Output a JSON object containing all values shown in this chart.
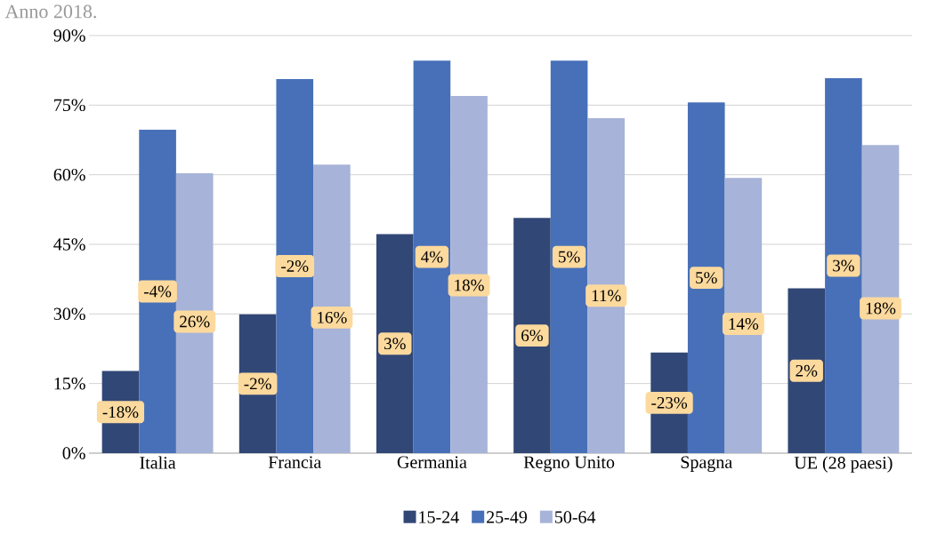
{
  "chart_data": {
    "type": "bar",
    "title": "Anno 2018.",
    "categories": [
      "Italia",
      "Francia",
      "Germania",
      "Regno Unito",
      "Spagna",
      "UE (28 paesi)"
    ],
    "series": [
      {
        "name": "15-24",
        "color": "#314776",
        "values": [
          17.7,
          29.9,
          47.2,
          50.7,
          21.7,
          35.5
        ]
      },
      {
        "name": "25-49",
        "color": "#4770b8",
        "values": [
          69.7,
          80.6,
          84.6,
          84.6,
          75.6,
          80.8
        ]
      },
      {
        "name": "50-64",
        "color": "#a7b3d8",
        "values": [
          60.3,
          62.2,
          77.0,
          72.2,
          59.3,
          66.4
        ]
      }
    ],
    "annotations": [
      "-18%",
      "-4%",
      "26%",
      "-2%",
      "-2%",
      "16%",
      "3%",
      "4%",
      "18%",
      "6%",
      "5%",
      "11%",
      "-23%",
      "5%",
      "14%",
      "2%",
      "3%",
      "18%"
    ],
    "ylim": [
      0,
      90
    ],
    "yticks": [
      {
        "value": 0,
        "label": "0%"
      },
      {
        "value": 15,
        "label": "15%"
      },
      {
        "value": 30,
        "label": "30%"
      },
      {
        "value": 45,
        "label": "45%"
      },
      {
        "value": 60,
        "label": "60%"
      },
      {
        "value": 75,
        "label": "75%"
      },
      {
        "value": 90,
        "label": "90%"
      }
    ],
    "grid": "y",
    "legend": "bottom"
  }
}
